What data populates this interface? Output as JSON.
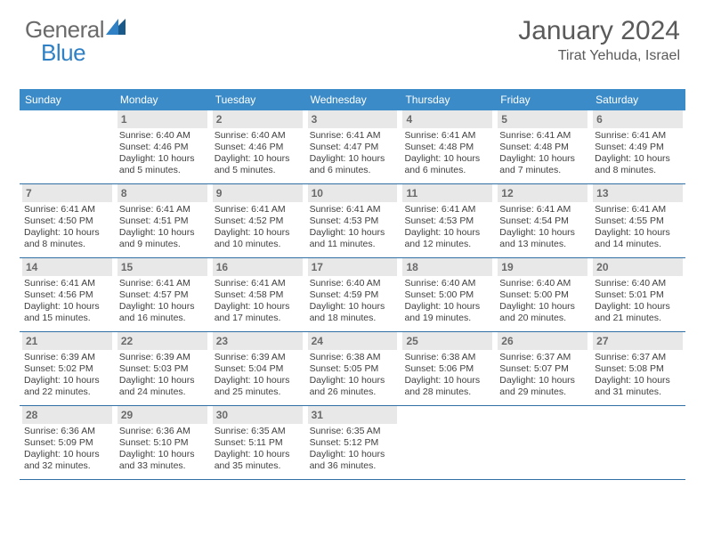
{
  "logo": {
    "part1": "General",
    "part2": "Blue"
  },
  "header": {
    "title": "January 2024",
    "location": "Tirat Yehuda, Israel"
  },
  "colors": {
    "header_bg": "#3b8bc8",
    "header_text": "#ffffff",
    "daynum_bg": "#e8e8e8",
    "daynum_text": "#6a6a6a",
    "border": "#2f6fa3",
    "body_text": "#404040",
    "logo_gray": "#6a6a6a",
    "logo_blue": "#2f80c4"
  },
  "day_headers": [
    "Sunday",
    "Monday",
    "Tuesday",
    "Wednesday",
    "Thursday",
    "Friday",
    "Saturday"
  ],
  "weeks": [
    [
      {
        "n": "",
        "sr": "",
        "ss": "",
        "dl": ""
      },
      {
        "n": "1",
        "sr": "6:40 AM",
        "ss": "4:46 PM",
        "dl": "10 hours and 5 minutes."
      },
      {
        "n": "2",
        "sr": "6:40 AM",
        "ss": "4:46 PM",
        "dl": "10 hours and 5 minutes."
      },
      {
        "n": "3",
        "sr": "6:41 AM",
        "ss": "4:47 PM",
        "dl": "10 hours and 6 minutes."
      },
      {
        "n": "4",
        "sr": "6:41 AM",
        "ss": "4:48 PM",
        "dl": "10 hours and 6 minutes."
      },
      {
        "n": "5",
        "sr": "6:41 AM",
        "ss": "4:48 PM",
        "dl": "10 hours and 7 minutes."
      },
      {
        "n": "6",
        "sr": "6:41 AM",
        "ss": "4:49 PM",
        "dl": "10 hours and 8 minutes."
      }
    ],
    [
      {
        "n": "7",
        "sr": "6:41 AM",
        "ss": "4:50 PM",
        "dl": "10 hours and 8 minutes."
      },
      {
        "n": "8",
        "sr": "6:41 AM",
        "ss": "4:51 PM",
        "dl": "10 hours and 9 minutes."
      },
      {
        "n": "9",
        "sr": "6:41 AM",
        "ss": "4:52 PM",
        "dl": "10 hours and 10 minutes."
      },
      {
        "n": "10",
        "sr": "6:41 AM",
        "ss": "4:53 PM",
        "dl": "10 hours and 11 minutes."
      },
      {
        "n": "11",
        "sr": "6:41 AM",
        "ss": "4:53 PM",
        "dl": "10 hours and 12 minutes."
      },
      {
        "n": "12",
        "sr": "6:41 AM",
        "ss": "4:54 PM",
        "dl": "10 hours and 13 minutes."
      },
      {
        "n": "13",
        "sr": "6:41 AM",
        "ss": "4:55 PM",
        "dl": "10 hours and 14 minutes."
      }
    ],
    [
      {
        "n": "14",
        "sr": "6:41 AM",
        "ss": "4:56 PM",
        "dl": "10 hours and 15 minutes."
      },
      {
        "n": "15",
        "sr": "6:41 AM",
        "ss": "4:57 PM",
        "dl": "10 hours and 16 minutes."
      },
      {
        "n": "16",
        "sr": "6:41 AM",
        "ss": "4:58 PM",
        "dl": "10 hours and 17 minutes."
      },
      {
        "n": "17",
        "sr": "6:40 AM",
        "ss": "4:59 PM",
        "dl": "10 hours and 18 minutes."
      },
      {
        "n": "18",
        "sr": "6:40 AM",
        "ss": "5:00 PM",
        "dl": "10 hours and 19 minutes."
      },
      {
        "n": "19",
        "sr": "6:40 AM",
        "ss": "5:00 PM",
        "dl": "10 hours and 20 minutes."
      },
      {
        "n": "20",
        "sr": "6:40 AM",
        "ss": "5:01 PM",
        "dl": "10 hours and 21 minutes."
      }
    ],
    [
      {
        "n": "21",
        "sr": "6:39 AM",
        "ss": "5:02 PM",
        "dl": "10 hours and 22 minutes."
      },
      {
        "n": "22",
        "sr": "6:39 AM",
        "ss": "5:03 PM",
        "dl": "10 hours and 24 minutes."
      },
      {
        "n": "23",
        "sr": "6:39 AM",
        "ss": "5:04 PM",
        "dl": "10 hours and 25 minutes."
      },
      {
        "n": "24",
        "sr": "6:38 AM",
        "ss": "5:05 PM",
        "dl": "10 hours and 26 minutes."
      },
      {
        "n": "25",
        "sr": "6:38 AM",
        "ss": "5:06 PM",
        "dl": "10 hours and 28 minutes."
      },
      {
        "n": "26",
        "sr": "6:37 AM",
        "ss": "5:07 PM",
        "dl": "10 hours and 29 minutes."
      },
      {
        "n": "27",
        "sr": "6:37 AM",
        "ss": "5:08 PM",
        "dl": "10 hours and 31 minutes."
      }
    ],
    [
      {
        "n": "28",
        "sr": "6:36 AM",
        "ss": "5:09 PM",
        "dl": "10 hours and 32 minutes."
      },
      {
        "n": "29",
        "sr": "6:36 AM",
        "ss": "5:10 PM",
        "dl": "10 hours and 33 minutes."
      },
      {
        "n": "30",
        "sr": "6:35 AM",
        "ss": "5:11 PM",
        "dl": "10 hours and 35 minutes."
      },
      {
        "n": "31",
        "sr": "6:35 AM",
        "ss": "5:12 PM",
        "dl": "10 hours and 36 minutes."
      },
      {
        "n": "",
        "sr": "",
        "ss": "",
        "dl": ""
      },
      {
        "n": "",
        "sr": "",
        "ss": "",
        "dl": ""
      },
      {
        "n": "",
        "sr": "",
        "ss": "",
        "dl": ""
      }
    ]
  ],
  "labels": {
    "sunrise": "Sunrise:",
    "sunset": "Sunset:",
    "daylight": "Daylight:"
  }
}
